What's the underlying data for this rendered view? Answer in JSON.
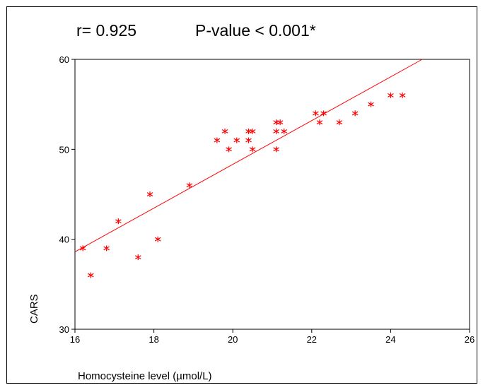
{
  "annotations": {
    "r_text": "r= 0.925",
    "p_text": "P-value < 0.001*"
  },
  "chart_data": {
    "type": "scatter",
    "title": "",
    "xlabel": "Homocysteine level (µmol/L)",
    "ylabel": "CARS",
    "xlim": [
      16,
      26
    ],
    "ylim": [
      30,
      60
    ],
    "xticks": [
      16,
      18,
      20,
      22,
      24,
      26
    ],
    "yticks": [
      30,
      40,
      50,
      60
    ],
    "grid": false,
    "marker": "asterisk",
    "colors": {
      "points": "#ff0000",
      "fit_line": "#ff0000",
      "axes": "#000000"
    },
    "points": [
      {
        "x": 16.2,
        "y": 39
      },
      {
        "x": 16.4,
        "y": 36
      },
      {
        "x": 16.8,
        "y": 39
      },
      {
        "x": 17.1,
        "y": 42
      },
      {
        "x": 17.6,
        "y": 38
      },
      {
        "x": 17.9,
        "y": 45
      },
      {
        "x": 18.1,
        "y": 40
      },
      {
        "x": 18.9,
        "y": 46
      },
      {
        "x": 19.6,
        "y": 51
      },
      {
        "x": 19.8,
        "y": 52
      },
      {
        "x": 19.9,
        "y": 50
      },
      {
        "x": 20.1,
        "y": 51
      },
      {
        "x": 20.4,
        "y": 51
      },
      {
        "x": 20.4,
        "y": 52
      },
      {
        "x": 20.5,
        "y": 52
      },
      {
        "x": 20.5,
        "y": 50
      },
      {
        "x": 21.1,
        "y": 53
      },
      {
        "x": 21.2,
        "y": 53
      },
      {
        "x": 21.1,
        "y": 52
      },
      {
        "x": 21.3,
        "y": 52
      },
      {
        "x": 21.1,
        "y": 50
      },
      {
        "x": 22.1,
        "y": 54
      },
      {
        "x": 22.3,
        "y": 54
      },
      {
        "x": 22.2,
        "y": 53
      },
      {
        "x": 22.7,
        "y": 53
      },
      {
        "x": 23.1,
        "y": 54
      },
      {
        "x": 23.5,
        "y": 55
      },
      {
        "x": 24.0,
        "y": 56
      },
      {
        "x": 24.3,
        "y": 56
      }
    ],
    "fit_line": {
      "x": [
        16,
        24.8
      ],
      "y": [
        38.6,
        60
      ]
    }
  }
}
